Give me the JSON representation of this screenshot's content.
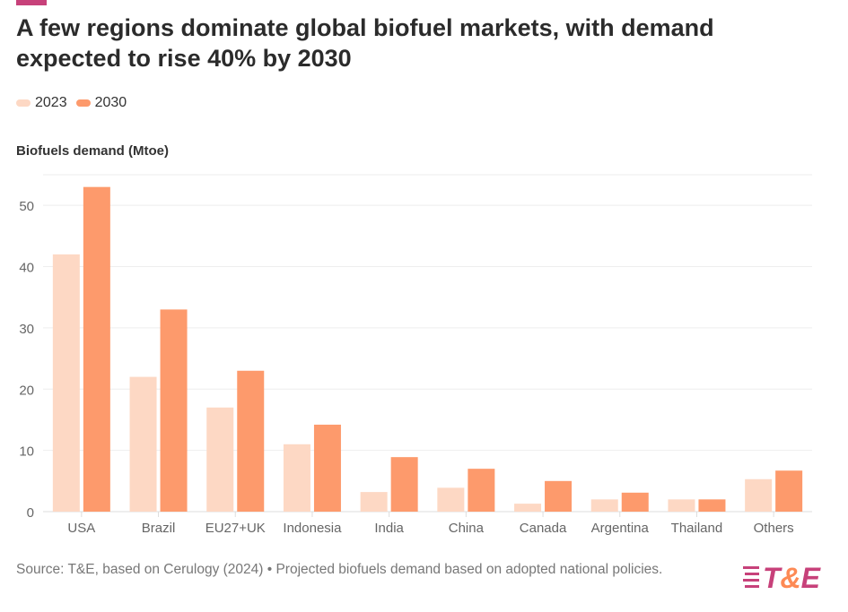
{
  "title": "A few regions dominate global biofuel markets, with demand expected to rise 40% by 2030",
  "source": "Source: T&E, based on Cerulogy (2024) • Projected biofuels demand based on adopted national policies.",
  "logo_text": "T&E",
  "chart_data": {
    "type": "bar",
    "title": "A few regions dominate global biofuel markets, with demand expected to rise 40% by 2030",
    "ylabel": "Biofuels demand (Mtoe)",
    "xlabel": "",
    "ylim": [
      0,
      55
    ],
    "yticks": [
      0,
      10,
      20,
      30,
      40,
      50
    ],
    "grid": true,
    "legend_placement": "top-left",
    "categories": [
      "USA",
      "Brazil",
      "EU27+UK",
      "Indonesia",
      "India",
      "China",
      "Canada",
      "Argentina",
      "Thailand",
      "Others"
    ],
    "series": [
      {
        "name": "2023",
        "color": "#fdd8c4",
        "values": [
          42,
          22,
          17,
          11,
          3.2,
          3.9,
          1.3,
          2.0,
          2.0,
          5.3
        ]
      },
      {
        "name": "2030",
        "color": "#fd9a6c",
        "values": [
          53,
          33,
          23,
          14.2,
          8.9,
          7.0,
          5.0,
          3.1,
          2.0,
          6.7
        ]
      }
    ]
  }
}
